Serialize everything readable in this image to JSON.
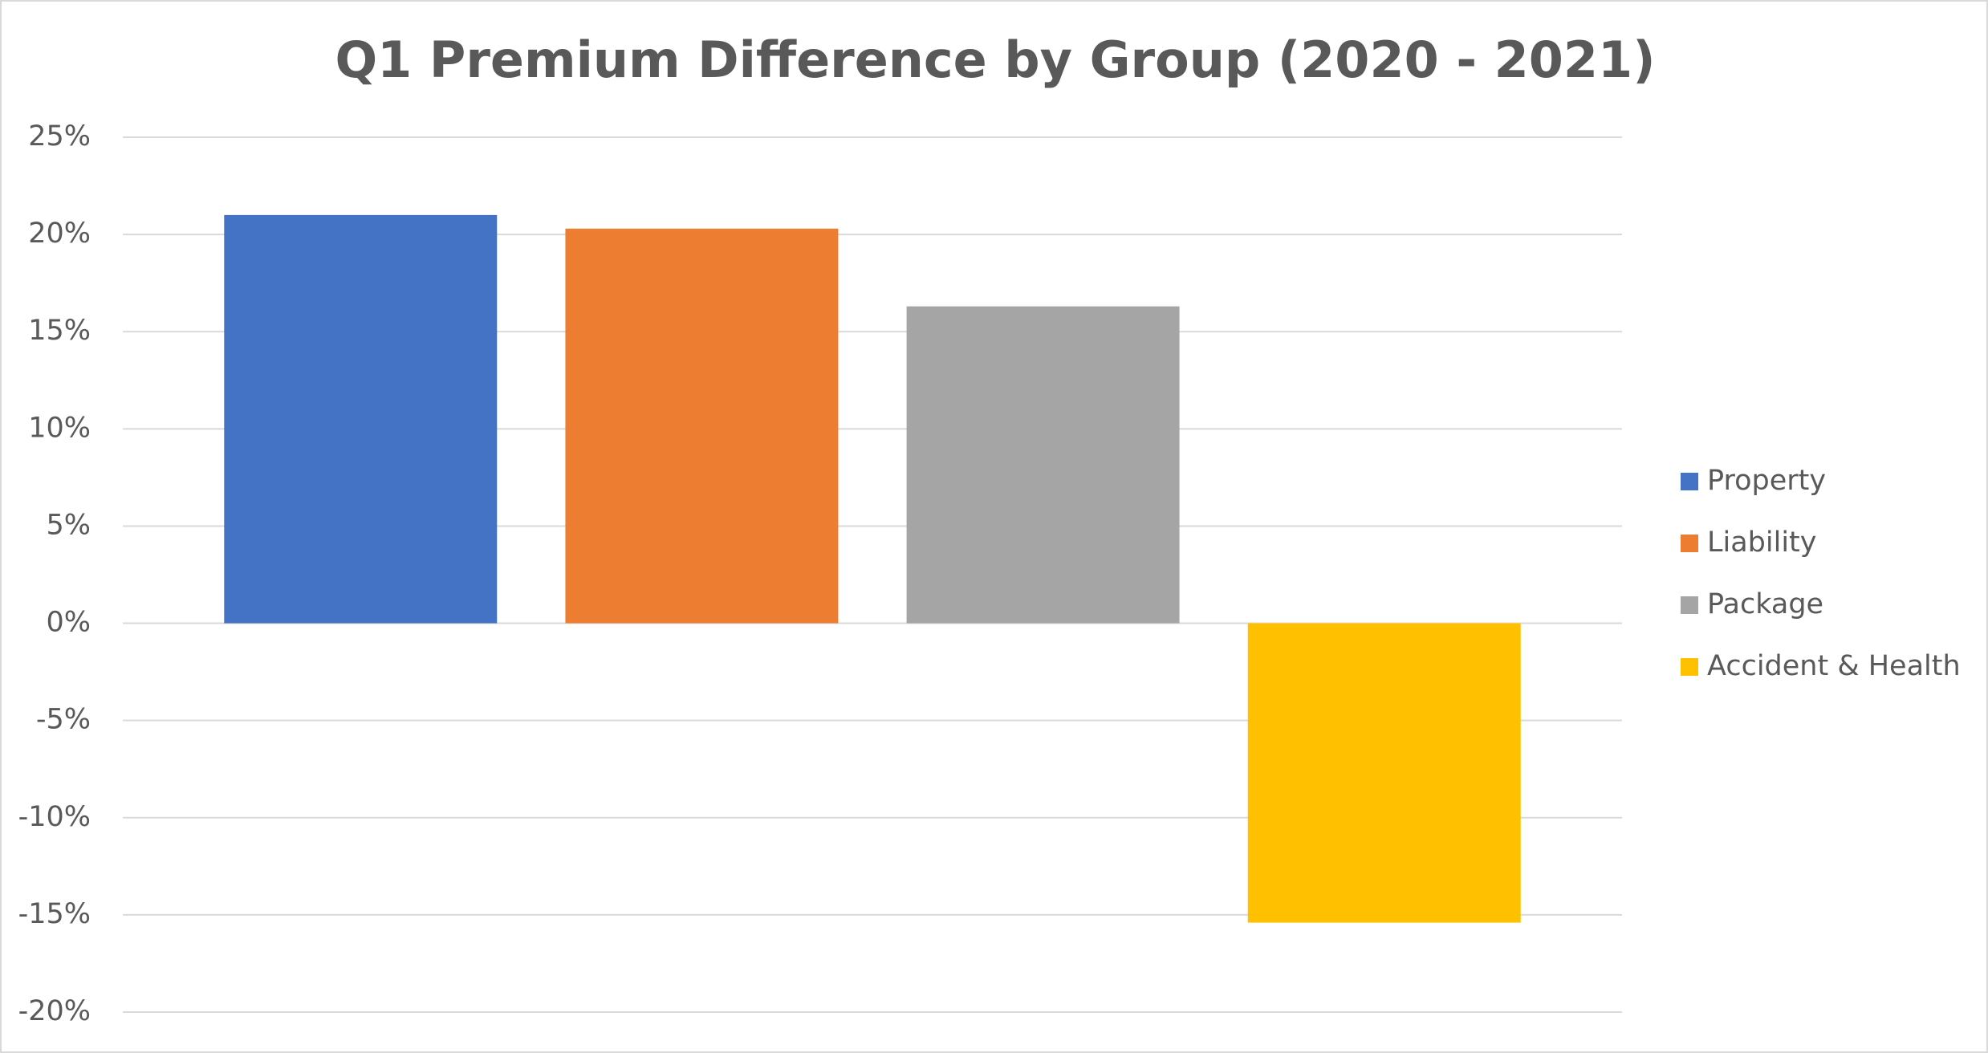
{
  "chart_data": {
    "type": "bar",
    "title": "Q1 Premium Difference by Group (2020 - 2021)",
    "series": [
      {
        "name": "Property",
        "color": "#4472c4",
        "values": [
          21
        ]
      },
      {
        "name": "Liability",
        "color": "#ed7d31",
        "values": [
          20.3
        ]
      },
      {
        "name": "Package",
        "color": "#a5a5a5",
        "values": [
          16.3
        ]
      },
      {
        "name": "Accident & Health",
        "color": "#ffc000",
        "values": [
          -15.4
        ]
      }
    ],
    "ylim": [
      -20,
      25
    ],
    "yticks": [
      {
        "value": -20,
        "label": "-20%"
      },
      {
        "value": -15,
        "label": "-15%"
      },
      {
        "value": -10,
        "label": "-10%"
      },
      {
        "value": -5,
        "label": "-5%"
      },
      {
        "value": 0,
        "label": "0%"
      },
      {
        "value": 5,
        "label": "5%"
      },
      {
        "value": 10,
        "label": "10%"
      },
      {
        "value": 15,
        "label": "15%"
      },
      {
        "value": 20,
        "label": "20%"
      },
      {
        "value": 25,
        "label": "25%"
      }
    ],
    "grid": true,
    "legend": "right"
  }
}
